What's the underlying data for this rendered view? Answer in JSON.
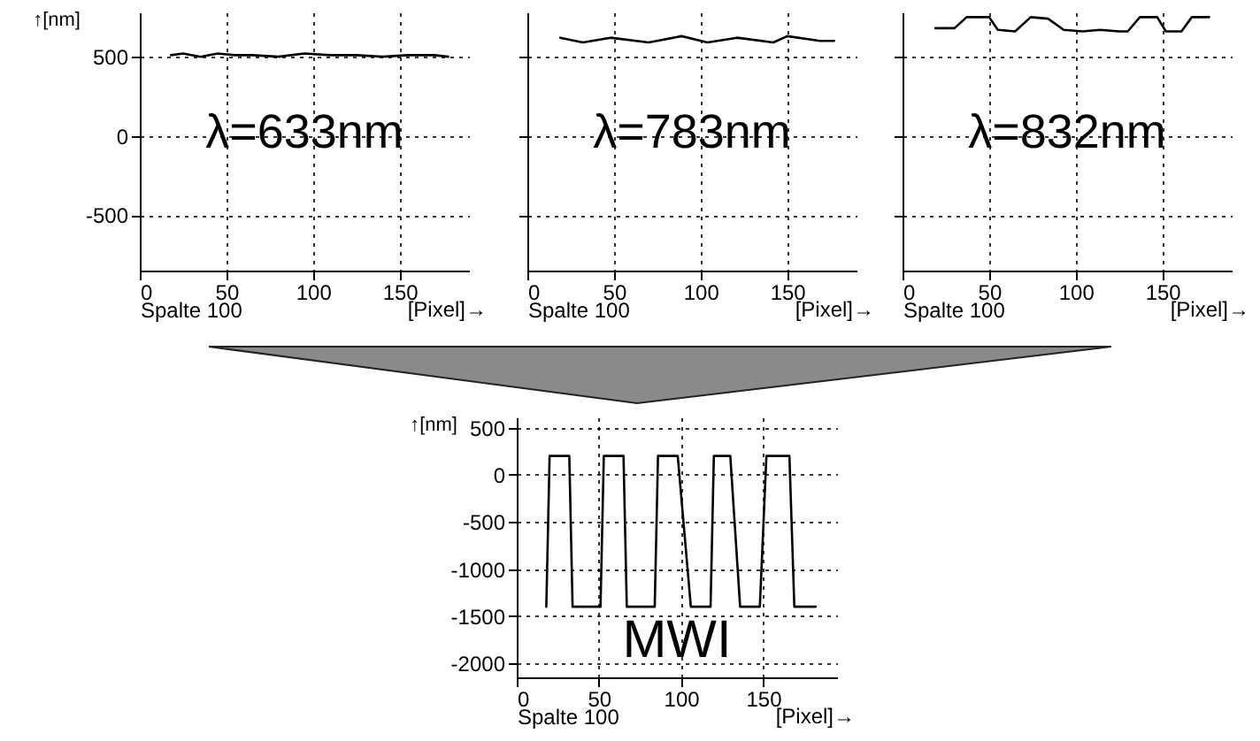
{
  "chart_data": [
    {
      "type": "line",
      "ylabel": "↑[nm]",
      "xlabel": "Spalte 100",
      "annotations": [
        "λ=633nm",
        "[Pixel]→"
      ],
      "xlim": [
        0,
        190
      ],
      "xticks": [
        0,
        50,
        100,
        150
      ],
      "ylim": [
        -850,
        780
      ],
      "yticks": [
        -500,
        0,
        500
      ],
      "grid": true,
      "series": [
        {
          "color": "#000000",
          "x": [
            18,
            25,
            35,
            45,
            55,
            65,
            80,
            95,
            110,
            125,
            140,
            155,
            170,
            178
          ],
          "values": [
            510,
            520,
            500,
            520,
            510,
            510,
            500,
            520,
            510,
            510,
            500,
            510,
            510,
            500
          ]
        }
      ]
    },
    {
      "type": "line",
      "xlabel": "Spalte 100",
      "annotations": [
        "λ=783nm",
        "[Pixel]→"
      ],
      "xlim": [
        0,
        190
      ],
      "xticks": [
        0,
        50,
        100,
        150
      ],
      "ylim": [
        -850,
        780
      ],
      "yticks": [
        -500,
        0,
        500
      ],
      "grid": true,
      "tick_labels": "x",
      "series": [
        {
          "color": "#000000",
          "x": [
            19,
            32,
            48,
            70,
            89,
            104,
            121,
            142,
            150,
            169,
            177
          ],
          "values": [
            620,
            590,
            620,
            590,
            630,
            590,
            620,
            590,
            630,
            600,
            600
          ]
        }
      ]
    },
    {
      "type": "line",
      "xlabel": "Spalte 100",
      "annotations": [
        "λ=832nm",
        "[Pixel]→"
      ],
      "xlim": [
        0,
        190
      ],
      "xticks": [
        0,
        50,
        100,
        150
      ],
      "ylim": [
        -850,
        780
      ],
      "yticks": [
        -500,
        0,
        500
      ],
      "grid": true,
      "tick_labels": "x",
      "series": [
        {
          "color": "#000000",
          "x": [
            19,
            30,
            37,
            50,
            55,
            65,
            74,
            84,
            93,
            104,
            114,
            125,
            130,
            137,
            147,
            152,
            161,
            167,
            177
          ],
          "values": [
            680,
            680,
            750,
            750,
            670,
            660,
            750,
            740,
            670,
            660,
            670,
            660,
            660,
            750,
            750,
            660,
            660,
            750,
            750
          ]
        }
      ]
    },
    {
      "type": "line",
      "ylabel": "↑[nm]",
      "xlabel": "Spalte 100",
      "annotations": [
        "MWI",
        "[Pixel]→"
      ],
      "xlim": [
        0,
        195
      ],
      "xticks": [
        0,
        50,
        100,
        150
      ],
      "ylim": [
        -2150,
        610
      ],
      "yticks": [
        -2000,
        -1500,
        -1000,
        -500,
        0,
        500
      ],
      "grid": true,
      "series": [
        {
          "color": "#000000",
          "x": [
            18,
            20,
            32,
            34,
            51,
            53,
            65,
            67,
            84,
            86,
            98,
            106,
            118,
            120,
            130,
            136,
            148,
            152,
            166,
            169,
            182
          ],
          "values": [
            -1400,
            200,
            200,
            -1400,
            -1400,
            200,
            200,
            -1400,
            -1400,
            200,
            200,
            -1400,
            -1400,
            200,
            200,
            -1400,
            -1400,
            200,
            200,
            -1400,
            -1400
          ]
        }
      ]
    }
  ]
}
